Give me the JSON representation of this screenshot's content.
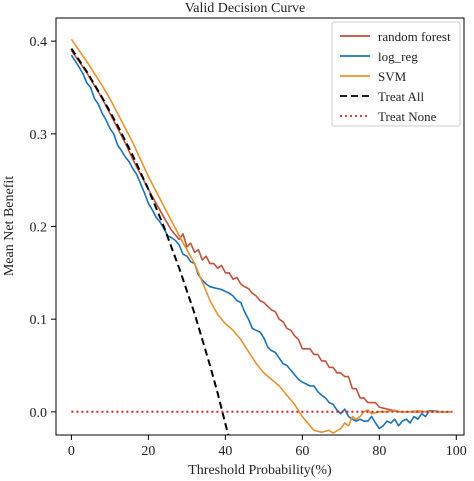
{
  "chart_data": {
    "type": "line",
    "title": "Valid Decision Curve",
    "xlabel": "Threshold Probability(%)",
    "ylabel": "Mean Net Benefit",
    "xlim": [
      -4,
      102
    ],
    "ylim": [
      -0.025,
      0.425
    ],
    "x_ticks": [
      0,
      20,
      40,
      60,
      80,
      100
    ],
    "x_tick_labels": [
      "0",
      "20",
      "40",
      "60",
      "80",
      "100"
    ],
    "y_ticks": [
      0.0,
      0.1,
      0.2,
      0.3,
      0.4
    ],
    "y_tick_labels": [
      "0.0",
      "0.1",
      "0.2",
      "0.3",
      "0.4"
    ],
    "grid": false,
    "legend_position": "top-right",
    "series": [
      {
        "name": "random forest",
        "color": "#c0513a",
        "style": "solid",
        "points": [
          [
            0,
            0.39
          ],
          [
            2,
            0.378
          ],
          [
            4,
            0.366
          ],
          [
            6,
            0.352
          ],
          [
            8,
            0.338
          ],
          [
            10,
            0.322
          ],
          [
            12,
            0.306
          ],
          [
            14,
            0.29
          ],
          [
            16,
            0.272
          ],
          [
            18,
            0.256
          ],
          [
            20,
            0.24
          ],
          [
            22,
            0.225
          ],
          [
            24,
            0.21
          ],
          [
            26,
            0.196
          ],
          [
            28,
            0.186
          ],
          [
            29,
            0.192
          ],
          [
            30,
            0.178
          ],
          [
            31,
            0.182
          ],
          [
            32,
            0.172
          ],
          [
            33,
            0.175
          ],
          [
            34,
            0.164
          ],
          [
            35,
            0.168
          ],
          [
            36,
            0.16
          ],
          [
            37,
            0.16
          ],
          [
            38,
            0.155
          ],
          [
            39,
            0.158
          ],
          [
            40,
            0.15
          ],
          [
            41,
            0.15
          ],
          [
            42,
            0.143
          ],
          [
            43,
            0.145
          ],
          [
            44,
            0.138
          ],
          [
            45,
            0.135
          ],
          [
            46,
            0.133
          ],
          [
            47,
            0.128
          ],
          [
            48,
            0.125
          ],
          [
            49,
            0.12
          ],
          [
            50,
            0.118
          ],
          [
            52,
            0.11
          ],
          [
            53,
            0.108
          ],
          [
            54,
            0.1
          ],
          [
            55,
            0.097
          ],
          [
            56,
            0.09
          ],
          [
            57,
            0.088
          ],
          [
            58,
            0.082
          ],
          [
            59,
            0.078
          ],
          [
            60,
            0.068
          ],
          [
            62,
            0.068
          ],
          [
            63,
            0.062
          ],
          [
            64,
            0.062
          ],
          [
            65,
            0.055
          ],
          [
            66,
            0.055
          ],
          [
            67,
            0.048
          ],
          [
            68,
            0.048
          ],
          [
            69,
            0.042
          ],
          [
            70,
            0.042
          ],
          [
            71,
            0.038
          ],
          [
            72,
            0.038
          ],
          [
            73,
            0.025
          ],
          [
            74,
            0.025
          ],
          [
            75,
            0.015
          ],
          [
            76,
            0.015
          ],
          [
            77,
            0.01
          ],
          [
            79,
            0.01
          ],
          [
            80,
            0.005
          ],
          [
            85,
            0.0
          ],
          [
            92,
            0.0
          ],
          [
            93,
            0.001
          ],
          [
            95,
            0.0
          ],
          [
            99,
            0.0
          ]
        ]
      },
      {
        "name": "log_reg",
        "color": "#1a72b8",
        "style": "solid",
        "points": [
          [
            0,
            0.385
          ],
          [
            2,
            0.372
          ],
          [
            3,
            0.365
          ],
          [
            4,
            0.355
          ],
          [
            5,
            0.35
          ],
          [
            6,
            0.338
          ],
          [
            7,
            0.332
          ],
          [
            8,
            0.322
          ],
          [
            9,
            0.315
          ],
          [
            10,
            0.306
          ],
          [
            11,
            0.3
          ],
          [
            12,
            0.288
          ],
          [
            13,
            0.282
          ],
          [
            14,
            0.275
          ],
          [
            15,
            0.27
          ],
          [
            16,
            0.262
          ],
          [
            17,
            0.256
          ],
          [
            18,
            0.246
          ],
          [
            19,
            0.236
          ],
          [
            20,
            0.225
          ],
          [
            21,
            0.218
          ],
          [
            22,
            0.21
          ],
          [
            23,
            0.205
          ],
          [
            24,
            0.198
          ],
          [
            25,
            0.19
          ],
          [
            26,
            0.188
          ],
          [
            27,
            0.185
          ],
          [
            28,
            0.18
          ],
          [
            29,
            0.17
          ],
          [
            30,
            0.168
          ],
          [
            31,
            0.162
          ],
          [
            32,
            0.16
          ],
          [
            33,
            0.148
          ],
          [
            34,
            0.142
          ],
          [
            35,
            0.138
          ],
          [
            36,
            0.135
          ],
          [
            37,
            0.134
          ],
          [
            38,
            0.133
          ],
          [
            39,
            0.132
          ],
          [
            40,
            0.13
          ],
          [
            41,
            0.128
          ],
          [
            42,
            0.125
          ],
          [
            43,
            0.12
          ],
          [
            44,
            0.118
          ],
          [
            45,
            0.108
          ],
          [
            46,
            0.1
          ],
          [
            47,
            0.09
          ],
          [
            48,
            0.088
          ],
          [
            49,
            0.086
          ],
          [
            50,
            0.08
          ],
          [
            51,
            0.07
          ],
          [
            52,
            0.066
          ],
          [
            53,
            0.064
          ],
          [
            54,
            0.058
          ],
          [
            55,
            0.052
          ],
          [
            56,
            0.05
          ],
          [
            57,
            0.045
          ],
          [
            58,
            0.04
          ],
          [
            59,
            0.035
          ],
          [
            60,
            0.032
          ],
          [
            61,
            0.03
          ],
          [
            62,
            0.028
          ],
          [
            63,
            0.028
          ],
          [
            64,
            0.022
          ],
          [
            65,
            0.018
          ],
          [
            66,
            0.015
          ],
          [
            67,
            0.01
          ],
          [
            68,
            0.008
          ],
          [
            69,
            0.002
          ],
          [
            70,
            -0.002
          ],
          [
            71,
            0.003
          ],
          [
            72,
            -0.005
          ],
          [
            73,
            -0.008
          ],
          [
            74,
            -0.01
          ],
          [
            75,
            -0.008
          ],
          [
            76,
            -0.01
          ],
          [
            77,
            -0.01
          ],
          [
            78,
            -0.005
          ],
          [
            79,
            -0.012
          ],
          [
            80,
            -0.018
          ],
          [
            81,
            -0.015
          ],
          [
            82,
            -0.01
          ],
          [
            83,
            -0.012
          ],
          [
            84,
            -0.008
          ],
          [
            85,
            -0.015
          ],
          [
            86,
            -0.01
          ],
          [
            87,
            -0.008
          ],
          [
            88,
            -0.012
          ],
          [
            89,
            -0.005
          ],
          [
            90,
            -0.008
          ],
          [
            91,
            -0.002
          ],
          [
            92,
            -0.005
          ],
          [
            93,
            0.001
          ],
          [
            94,
            0.001
          ],
          [
            96,
            0.0
          ],
          [
            99,
            0.0
          ]
        ]
      },
      {
        "name": "SVM",
        "color": "#e8922c",
        "style": "solid",
        "points": [
          [
            0,
            0.402
          ],
          [
            2,
            0.39
          ],
          [
            4,
            0.378
          ],
          [
            6,
            0.365
          ],
          [
            8,
            0.352
          ],
          [
            10,
            0.338
          ],
          [
            12,
            0.322
          ],
          [
            14,
            0.306
          ],
          [
            16,
            0.29
          ],
          [
            18,
            0.272
          ],
          [
            20,
            0.254
          ],
          [
            22,
            0.238
          ],
          [
            24,
            0.222
          ],
          [
            26,
            0.206
          ],
          [
            28,
            0.19
          ],
          [
            30,
            0.175
          ],
          [
            32,
            0.16
          ],
          [
            34,
            0.14
          ],
          [
            36,
            0.12
          ],
          [
            38,
            0.105
          ],
          [
            40,
            0.095
          ],
          [
            42,
            0.088
          ],
          [
            44,
            0.078
          ],
          [
            46,
            0.065
          ],
          [
            48,
            0.052
          ],
          [
            50,
            0.042
          ],
          [
            52,
            0.035
          ],
          [
            54,
            0.028
          ],
          [
            56,
            0.018
          ],
          [
            58,
            0.008
          ],
          [
            60,
            -0.005
          ],
          [
            62,
            -0.015
          ],
          [
            63,
            -0.02
          ],
          [
            65,
            -0.022
          ],
          [
            67,
            -0.02
          ],
          [
            68,
            -0.023
          ],
          [
            70,
            -0.018
          ],
          [
            71,
            -0.012
          ],
          [
            72,
            -0.015
          ],
          [
            73,
            -0.005
          ],
          [
            74,
            -0.008
          ],
          [
            75,
            -0.005
          ],
          [
            76,
            0.0
          ],
          [
            77,
            0.002
          ],
          [
            78,
            -0.002
          ],
          [
            80,
            0.0
          ],
          [
            82,
            0.0
          ],
          [
            84,
            0.002
          ],
          [
            85,
            0.0
          ],
          [
            88,
            0.0
          ],
          [
            90,
            0.001
          ],
          [
            92,
            0.0
          ],
          [
            95,
            0.0
          ],
          [
            99,
            0.0
          ]
        ]
      },
      {
        "name": "Treat All",
        "color": "#000000",
        "style": "dashed",
        "points": [
          [
            0,
            0.392
          ],
          [
            4,
            0.367
          ],
          [
            8,
            0.339
          ],
          [
            12,
            0.309
          ],
          [
            16,
            0.276
          ],
          [
            20,
            0.24
          ],
          [
            24,
            0.2
          ],
          [
            28,
            0.155
          ],
          [
            32,
            0.106
          ],
          [
            36,
            0.05
          ],
          [
            38,
            0.02
          ],
          [
            40,
            -0.013
          ],
          [
            40.8,
            -0.025
          ]
        ]
      },
      {
        "name": "Treat None",
        "color": "#d32020",
        "style": "dotted",
        "points": [
          [
            0,
            0.0
          ],
          [
            99,
            0.0
          ]
        ]
      }
    ]
  }
}
